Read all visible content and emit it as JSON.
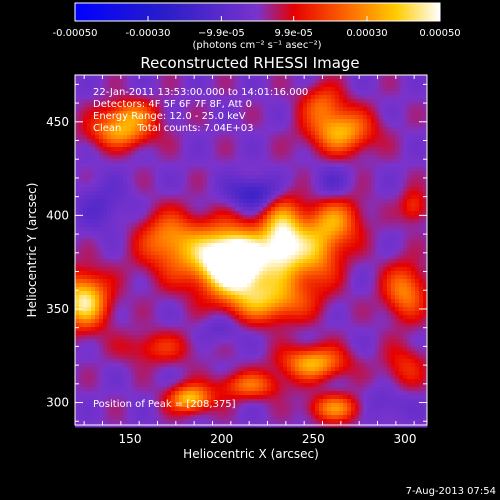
{
  "chart_data": {
    "type": "heatmap",
    "title": "Reconstructed RHESSI Image",
    "xlabel": "Heliocentric X (arcsec)",
    "ylabel": "Heliocentric Y (arcsec)",
    "xlim": [
      120,
      312
    ],
    "ylim": [
      288,
      475
    ],
    "x_ticks": [
      150,
      200,
      250,
      300
    ],
    "y_ticks": [
      300,
      350,
      400,
      450
    ],
    "colorbar": {
      "range": [
        -0.0005,
        0.0005
      ],
      "tick_values": [
        -0.0005,
        -0.0003,
        -9.9e-05,
        9.9e-05,
        0.0003,
        0.0005
      ],
      "tick_labels": [
        "-0.00050",
        "-0.00030",
        "−9.9e-05",
        "9.9e-05",
        "0.00030",
        "0.00050"
      ],
      "units": "(photons cm⁻² s⁻¹ asec⁻²)",
      "colors": [
        "#0000ff",
        "#2a1ec8",
        "#7a33cc",
        "#e60000",
        "#ff6a00",
        "#ffcc00",
        "#ffffff"
      ]
    },
    "annotation_lines": [
      "22-Jan-2011 13:53:00.000 to 14:01:16.000",
      "Detectors: 4F 5F 6F 7F 8F, Att 0",
      "Energy Range: 12.0 - 25.0 keV",
      "Clean     Total counts: 7.04E+03"
    ],
    "peak_label": "Position of Peak = [208,375]",
    "peak": [
      208,
      375
    ],
    "sources": [
      {
        "x": 208,
        "y": 375,
        "sx": 12,
        "sy": 11,
        "amp": 0.00062
      },
      {
        "x": 190,
        "y": 380,
        "sx": 20,
        "sy": 12,
        "amp": 0.00028
      },
      {
        "x": 233,
        "y": 388,
        "sx": 8,
        "sy": 14,
        "amp": 0.00045
      },
      {
        "x": 250,
        "y": 380,
        "sx": 10,
        "sy": 12,
        "amp": 0.0003
      },
      {
        "x": 262,
        "y": 398,
        "sx": 10,
        "sy": 10,
        "amp": 0.00028
      },
      {
        "x": 225,
        "y": 355,
        "sx": 16,
        "sy": 8,
        "amp": 0.00032
      },
      {
        "x": 170,
        "y": 390,
        "sx": 10,
        "sy": 9,
        "amp": 0.00018
      },
      {
        "x": 125,
        "y": 355,
        "sx": 9,
        "sy": 10,
        "amp": 0.00045
      },
      {
        "x": 145,
        "y": 445,
        "sx": 12,
        "sy": 6,
        "amp": 0.00032
      },
      {
        "x": 150,
        "y": 455,
        "sx": 10,
        "sy": 5,
        "amp": 0.00022
      },
      {
        "x": 265,
        "y": 445,
        "sx": 12,
        "sy": 8,
        "amp": 0.00035
      },
      {
        "x": 255,
        "y": 460,
        "sx": 8,
        "sy": 7,
        "amp": 0.0002
      },
      {
        "x": 300,
        "y": 360,
        "sx": 8,
        "sy": 10,
        "amp": 0.00028
      },
      {
        "x": 305,
        "y": 405,
        "sx": 5,
        "sy": 6,
        "amp": 0.00018
      },
      {
        "x": 250,
        "y": 322,
        "sx": 12,
        "sy": 6,
        "amp": 0.00035
      },
      {
        "x": 215,
        "y": 310,
        "sx": 12,
        "sy": 5,
        "amp": 0.00024
      },
      {
        "x": 183,
        "y": 303,
        "sx": 8,
        "sy": 5,
        "amp": 0.00038
      },
      {
        "x": 262,
        "y": 298,
        "sx": 10,
        "sy": 5,
        "amp": 0.00028
      },
      {
        "x": 165,
        "y": 330,
        "sx": 14,
        "sy": 6,
        "amp": 0.00015
      },
      {
        "x": 300,
        "y": 320,
        "sx": 8,
        "sy": 8,
        "amp": 0.00015
      },
      {
        "x": 218,
        "y": 412,
        "sx": 10,
        "sy": 6,
        "amp": -0.00022
      },
      {
        "x": 260,
        "y": 415,
        "sx": 8,
        "sy": 8,
        "amp": -0.00012
      },
      {
        "x": 135,
        "y": 405,
        "sx": 10,
        "sy": 10,
        "amp": -0.0001
      },
      {
        "x": 200,
        "y": 340,
        "sx": 8,
        "sy": 6,
        "amp": -8e-05
      },
      {
        "x": 290,
        "y": 300,
        "sx": 10,
        "sy": 6,
        "amp": -8e-05
      }
    ]
  },
  "footer": {
    "date": "7-Aug-2013 07:54"
  }
}
